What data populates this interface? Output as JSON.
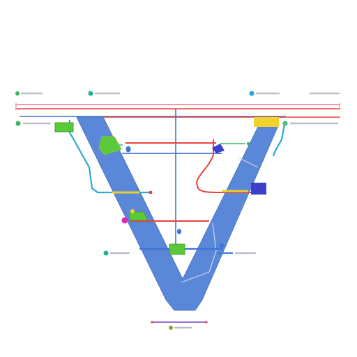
{
  "diagram": {
    "labels": {
      "top_left": "",
      "top_mid": "",
      "top_right_mid": "",
      "top_right": "",
      "left_upper": "",
      "right_upper": "",
      "left_lower": "",
      "right_lower": "",
      "bottom": ""
    },
    "colors": {
      "funnel": "#5b87d9",
      "funnel_dark": "#4a75c8",
      "line_red": "#e8413a",
      "line_blue": "#3f74d6",
      "line_cyan": "#2aa7d4",
      "line_yellow": "#e8d230",
      "line_green": "#34b85a",
      "line_pink": "#f19bb0",
      "marker_green": "#5cc93a",
      "marker_yellow": "#f2d32b",
      "marker_blue": "#3b3fc9",
      "marker_magenta": "#d92bb8",
      "dot_teal": "#1eb39a",
      "dot_sky": "#27a3d6",
      "dot_olive": "#8aa327"
    }
  }
}
